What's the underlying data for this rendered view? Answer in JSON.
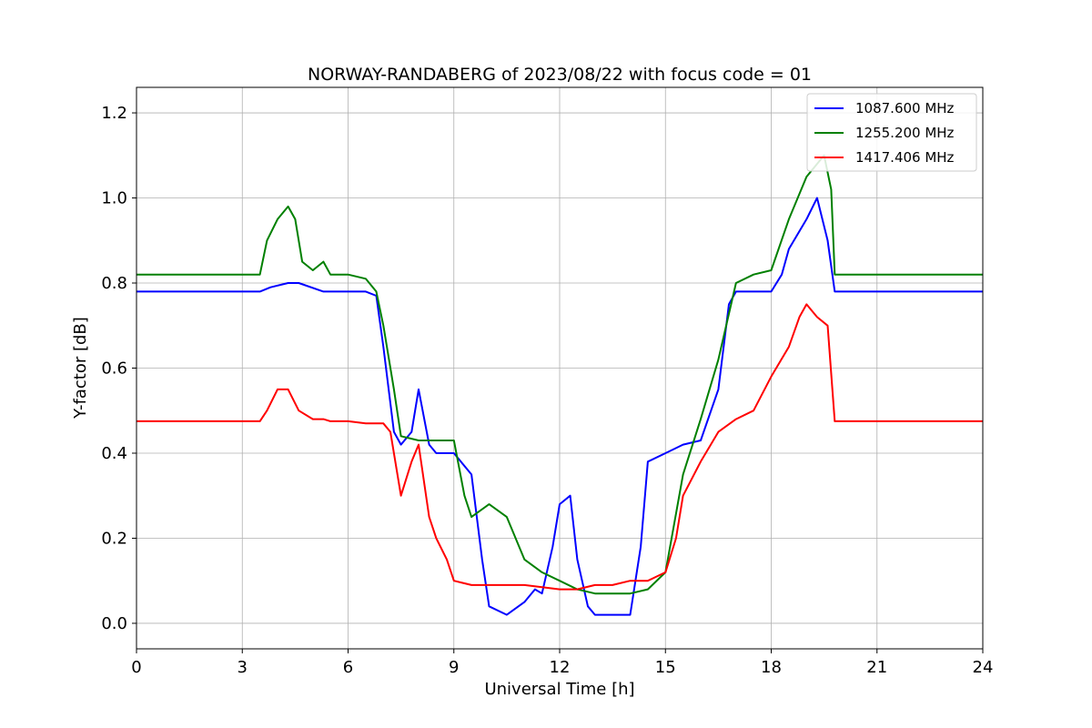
{
  "chart_data": {
    "type": "line",
    "title": "NORWAY-RANDABERG of 2023/08/22 with focus code = 01",
    "xlabel": "Universal Time [h]",
    "ylabel": "Y-factor [dB]",
    "xlim": [
      0,
      24
    ],
    "ylim": [
      -0.06,
      1.26
    ],
    "xticks": [
      0,
      3,
      6,
      9,
      12,
      15,
      18,
      21,
      24
    ],
    "xtick_labels": [
      "0",
      "3",
      "6",
      "9",
      "12",
      "15",
      "18",
      "21",
      "24"
    ],
    "yticks": [
      0.0,
      0.2,
      0.4,
      0.6,
      0.8,
      1.0,
      1.2
    ],
    "ytick_labels": [
      "0.0",
      "0.2",
      "0.4",
      "0.6",
      "0.8",
      "1.0",
      "1.2"
    ],
    "grid": true,
    "legend_position": "top-right",
    "series": [
      {
        "name": "1087.600 MHz",
        "color": "#0000ff",
        "x": [
          0,
          3.5,
          3.8,
          4.3,
          4.6,
          5.3,
          6.5,
          6.8,
          7.0,
          7.3,
          7.5,
          7.8,
          8.0,
          8.3,
          8.5,
          9.0,
          9.5,
          9.8,
          10.0,
          10.5,
          11.0,
          11.3,
          11.5,
          11.8,
          12.0,
          12.3,
          12.5,
          12.8,
          13.0,
          13.5,
          14.0,
          14.3,
          14.5,
          15.0,
          15.5,
          16.0,
          16.5,
          16.8,
          17.0,
          17.5,
          18.0,
          18.3,
          18.5,
          19.0,
          19.3,
          19.6,
          19.8,
          20.0,
          21.0,
          24.0
        ],
        "y": [
          0.78,
          0.78,
          0.79,
          0.8,
          0.8,
          0.78,
          0.78,
          0.77,
          0.65,
          0.45,
          0.42,
          0.45,
          0.55,
          0.42,
          0.4,
          0.4,
          0.35,
          0.15,
          0.04,
          0.02,
          0.05,
          0.08,
          0.07,
          0.18,
          0.28,
          0.3,
          0.15,
          0.04,
          0.02,
          0.02,
          0.02,
          0.18,
          0.38,
          0.4,
          0.42,
          0.43,
          0.55,
          0.75,
          0.78,
          0.78,
          0.78,
          0.82,
          0.88,
          0.95,
          1.0,
          0.9,
          0.78,
          0.78,
          0.78,
          0.78
        ]
      },
      {
        "name": "1255.200 MHz",
        "color": "#008000",
        "x": [
          0,
          3.5,
          3.7,
          4.0,
          4.3,
          4.5,
          4.7,
          5.0,
          5.3,
          5.5,
          6.0,
          6.5,
          6.8,
          7.0,
          7.3,
          7.5,
          8.0,
          8.5,
          9.0,
          9.3,
          9.5,
          10.0,
          10.5,
          11.0,
          11.5,
          12.0,
          12.5,
          13.0,
          13.5,
          14.0,
          14.5,
          15.0,
          15.5,
          16.0,
          16.5,
          17.0,
          17.5,
          18.0,
          18.5,
          19.0,
          19.5,
          19.7,
          19.8,
          20.0,
          21.0,
          24.0
        ],
        "y": [
          0.82,
          0.82,
          0.9,
          0.95,
          0.98,
          0.95,
          0.85,
          0.83,
          0.85,
          0.82,
          0.82,
          0.81,
          0.78,
          0.7,
          0.55,
          0.44,
          0.43,
          0.43,
          0.43,
          0.3,
          0.25,
          0.28,
          0.25,
          0.15,
          0.12,
          0.1,
          0.08,
          0.07,
          0.07,
          0.07,
          0.08,
          0.12,
          0.35,
          0.48,
          0.62,
          0.8,
          0.82,
          0.83,
          0.95,
          1.05,
          1.1,
          1.02,
          0.82,
          0.82,
          0.82,
          0.82
        ]
      },
      {
        "name": "1417.406 MHz",
        "color": "#ff0000",
        "x": [
          0,
          3.5,
          3.7,
          4.0,
          4.3,
          4.6,
          5.0,
          5.3,
          5.5,
          6.0,
          6.5,
          7.0,
          7.2,
          7.5,
          7.8,
          8.0,
          8.3,
          8.5,
          8.8,
          9.0,
          9.5,
          10.0,
          11.0,
          12.0,
          12.5,
          13.0,
          13.5,
          14.0,
          14.5,
          15.0,
          15.3,
          15.5,
          16.0,
          16.5,
          17.0,
          17.5,
          18.0,
          18.5,
          18.8,
          19.0,
          19.3,
          19.6,
          19.8,
          20.0,
          21.0,
          24.0
        ],
        "y": [
          0.475,
          0.475,
          0.5,
          0.55,
          0.55,
          0.5,
          0.48,
          0.48,
          0.475,
          0.475,
          0.47,
          0.47,
          0.45,
          0.3,
          0.38,
          0.42,
          0.25,
          0.2,
          0.15,
          0.1,
          0.09,
          0.09,
          0.09,
          0.08,
          0.08,
          0.09,
          0.09,
          0.1,
          0.1,
          0.12,
          0.2,
          0.3,
          0.38,
          0.45,
          0.48,
          0.5,
          0.58,
          0.65,
          0.72,
          0.75,
          0.72,
          0.7,
          0.475,
          0.475,
          0.475,
          0.475
        ]
      }
    ]
  }
}
